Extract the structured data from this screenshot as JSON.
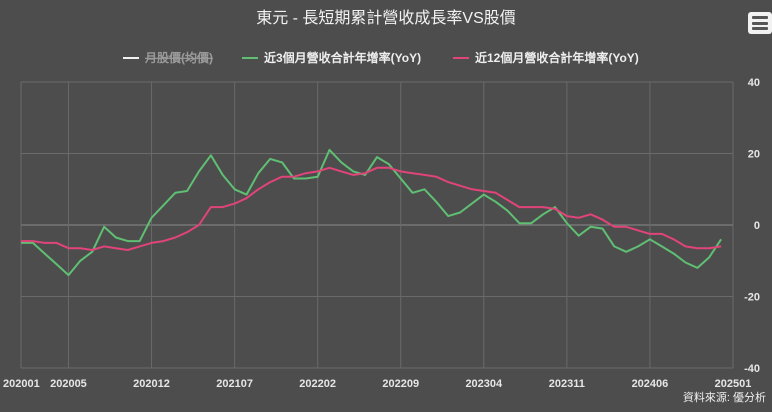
{
  "chart_data": {
    "type": "line",
    "title": "東元 - 長短期累計營收成長率VS股價",
    "legend": {
      "placement": "top",
      "entries": [
        {
          "name": "月股價(均價)",
          "color": "#f0f0f0",
          "hidden": true
        },
        {
          "name": "近3個月營收合計年增率(YoY)",
          "color": "#5fbf73",
          "hidden": false
        },
        {
          "name": "近12個月營收合計年增率(YoY)",
          "color": "#e0447a",
          "hidden": false
        }
      ]
    },
    "x_tick_labels": [
      "202001",
      "202005",
      "202012",
      "202107",
      "202202",
      "202209",
      "202304",
      "202311",
      "202406",
      "202501"
    ],
    "x_tick_indices": [
      0,
      4,
      11,
      18,
      25,
      32,
      39,
      46,
      53,
      60
    ],
    "x_range": [
      0,
      60
    ],
    "y_right": {
      "ticks": [
        40,
        20,
        0,
        -20,
        -40
      ],
      "range": [
        -40,
        40
      ]
    },
    "grid": true,
    "series": [
      {
        "name": "近3個月營收合計年增率(YoY)",
        "color": "#5fbf73",
        "values": [
          -5,
          -5,
          -8,
          -11,
          -14,
          -10,
          -7.5,
          -0.5,
          -3.5,
          -4.5,
          -4.5,
          2,
          5.5,
          9,
          9.5,
          15,
          19.5,
          14,
          10,
          8.5,
          14.5,
          18.5,
          17.5,
          13,
          13,
          13.5,
          21,
          17.5,
          15,
          14,
          19,
          17,
          13,
          9,
          10,
          6.5,
          2.5,
          3.5,
          6,
          8.5,
          6.5,
          4,
          0.5,
          0.5,
          3,
          5,
          0.5,
          -3,
          -0.5,
          -1,
          -6,
          -7.5,
          -6,
          -4,
          -6,
          -8,
          -10.5,
          -12,
          -9,
          -4
        ]
      },
      {
        "name": "近12個月營收合計年增率(YoY)",
        "color": "#e0447a",
        "values": [
          -4.5,
          -4.5,
          -5,
          -5,
          -6.5,
          -6.5,
          -7,
          -6,
          -6.5,
          -7,
          -6,
          -5,
          -4.5,
          -3.5,
          -2,
          0,
          5,
          5,
          6,
          7.5,
          10,
          12,
          13.5,
          13.5,
          14.5,
          15,
          16,
          15,
          14,
          14.5,
          16,
          16,
          15,
          14.5,
          14,
          13.5,
          12,
          11,
          10,
          9.5,
          9,
          7,
          5,
          5,
          5,
          4.5,
          2.5,
          2,
          3,
          1.5,
          -0.5,
          -0.5,
          -1.5,
          -2.5,
          -2.5,
          -4,
          -6,
          -6.5,
          -6.5,
          -6
        ]
      }
    ]
  },
  "source_text": "資料來源: 優分析",
  "menu_icon": "hamburger-menu-icon"
}
